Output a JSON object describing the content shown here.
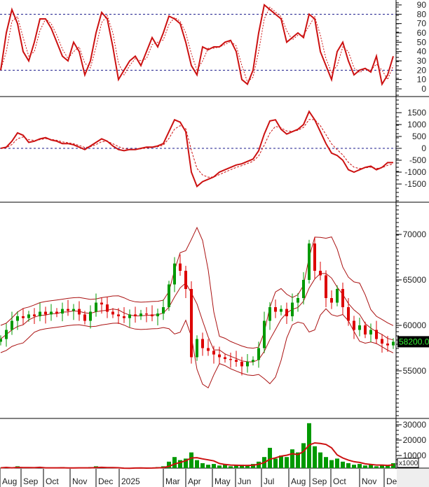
{
  "chart_data": [
    {
      "type": "line",
      "panel": "stochastic",
      "yticks": [
        0,
        10,
        20,
        30,
        40,
        50,
        60,
        70,
        80,
        90
      ],
      "ylim": [
        0,
        95
      ],
      "reference_lines": [
        20,
        80
      ],
      "k": [
        20,
        60,
        85,
        70,
        40,
        30,
        50,
        75,
        75,
        65,
        50,
        35,
        30,
        50,
        40,
        15,
        30,
        60,
        82,
        75,
        45,
        10,
        20,
        30,
        35,
        25,
        40,
        55,
        45,
        60,
        78,
        75,
        70,
        50,
        25,
        15,
        45,
        42,
        45,
        45,
        50,
        52,
        40,
        10,
        5,
        20,
        60,
        90,
        85,
        80,
        75,
        50,
        55,
        60,
        55,
        80,
        75,
        40,
        25,
        10,
        40,
        50,
        30,
        15,
        20,
        22,
        18,
        35,
        5,
        15,
        35
      ],
      "line_color": "#cc1111"
    },
    {
      "type": "line",
      "panel": "macd",
      "yticks": [
        -1500,
        -1000,
        -500,
        0,
        500,
        1000,
        1500
      ],
      "ylim": [
        -2000,
        1800
      ],
      "reference_lines": [
        0
      ],
      "macd": [
        0,
        50,
        300,
        650,
        550,
        250,
        300,
        400,
        450,
        350,
        300,
        200,
        200,
        150,
        50,
        -50,
        100,
        250,
        400,
        300,
        100,
        -50,
        -100,
        -50,
        -50,
        0,
        50,
        50,
        100,
        200,
        700,
        1200,
        1100,
        700,
        -1000,
        -1600,
        -1400,
        -1300,
        -1200,
        -1000,
        -900,
        -800,
        -700,
        -650,
        -550,
        -450,
        -100,
        600,
        1150,
        1200,
        800,
        600,
        700,
        800,
        1000,
        1550,
        1200,
        700,
        200,
        -200,
        -300,
        -500,
        -900,
        -1000,
        -900,
        -800,
        -750,
        -900,
        -800,
        -600,
        -600
      ],
      "line_color": "#cc1111"
    },
    {
      "type": "candlestick",
      "panel": "price",
      "yticks": [
        55000,
        60000,
        65000,
        70000
      ],
      "ylim": [
        50500,
        72500
      ],
      "close": [
        58500,
        59500,
        60500,
        61000,
        60800,
        61200,
        61000,
        61500,
        61200,
        61500,
        61300,
        61800,
        61600,
        61800,
        61200,
        60500,
        61500,
        62500,
        62300,
        61500,
        61200,
        61000,
        60800,
        61200,
        61000,
        61300,
        61200,
        61000,
        61300,
        62000,
        64500,
        66800,
        66000,
        64000,
        56500,
        58500,
        57500,
        57200,
        56800,
        56500,
        56300,
        56200,
        56000,
        55500,
        56000,
        56200,
        57500,
        60500,
        62000,
        61500,
        61800,
        61000,
        62500,
        63000,
        65000,
        69000,
        66000,
        65500,
        63000,
        62500,
        64000,
        62000,
        60500,
        59500,
        60000,
        59000,
        59500,
        58500,
        58000,
        57800,
        58200
      ],
      "last_price_label": "58200.00",
      "up_color": "#009900",
      "down_color": "#dd0000",
      "band_color": "#aa1111"
    },
    {
      "type": "bar",
      "panel": "volume",
      "yticks": [
        10000,
        20000,
        30000
      ],
      "unit_label": "x1000",
      "values": [
        2000,
        2500,
        1500,
        3000,
        2000,
        1800,
        2200,
        2500,
        1500,
        2000,
        1800,
        2500,
        2000,
        1500,
        2200,
        1800,
        2500,
        3000,
        2000,
        1500,
        1800,
        2000,
        1500,
        1800,
        2200,
        2000,
        1500,
        1800,
        2500,
        3000,
        6000,
        9000,
        7000,
        8000,
        12000,
        7000,
        5000,
        4000,
        4500,
        3500,
        4000,
        3000,
        3500,
        4000,
        3500,
        4500,
        6000,
        9000,
        15000,
        8000,
        10000,
        9000,
        14000,
        12000,
        18000,
        31000,
        16000,
        12000,
        9000,
        7000,
        8000,
        6000,
        5000,
        4000,
        4500,
        3500,
        4000,
        3000,
        4000,
        3500,
        5000
      ],
      "bar_color": "#009900",
      "ma_color": "#cc1111"
    }
  ],
  "x_axis": {
    "months": [
      "Aug",
      "Sep",
      "Oct",
      "Nov",
      "Dec",
      "2025",
      "Mar",
      "Apr",
      "May",
      "Jun",
      "Jul",
      "Aug",
      "Sep",
      "Oct",
      "Nov",
      "De"
    ]
  }
}
